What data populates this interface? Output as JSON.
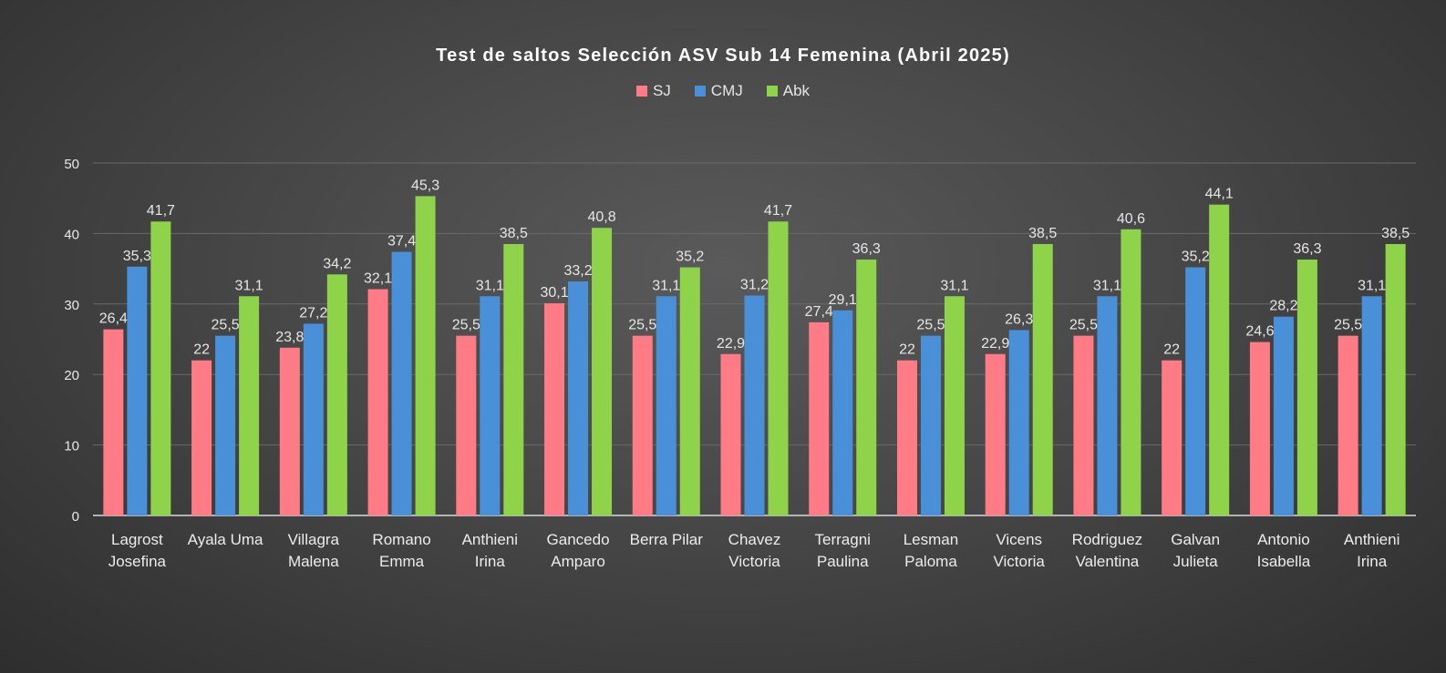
{
  "colors": {
    "SJ": "#ff7b85",
    "CMJ": "#4a90d9",
    "Abk": "#8ed34a"
  },
  "chart_data": {
    "type": "bar",
    "title": "Test de saltos Selección ASV Sub 14 Femenina (Abril 2025)",
    "categories": [
      [
        "Lagrost",
        "Josefina"
      ],
      [
        "Ayala Uma"
      ],
      [
        "Villagra",
        "Malena"
      ],
      [
        "Romano",
        "Emma"
      ],
      [
        "Anthieni",
        "Irina"
      ],
      [
        "Gancedo",
        "Amparo"
      ],
      [
        "Berra Pilar"
      ],
      [
        "Chavez",
        "Victoria"
      ],
      [
        "Terragni",
        "Paulina"
      ],
      [
        "Lesman",
        "Paloma"
      ],
      [
        "Vicens",
        "Victoria"
      ],
      [
        "Rodriguez",
        "Valentina"
      ],
      [
        "Galvan",
        "Julieta"
      ],
      [
        "Antonio",
        "Isabella"
      ],
      [
        "Anthieni",
        "Irina"
      ]
    ],
    "series": [
      {
        "name": "SJ",
        "values": [
          26.4,
          22,
          23.8,
          32.1,
          25.5,
          30.1,
          25.5,
          22.9,
          27.4,
          22,
          22.9,
          25.5,
          22,
          24.6,
          25.5
        ]
      },
      {
        "name": "CMJ",
        "values": [
          35.3,
          25.5,
          27.2,
          37.4,
          31.1,
          33.2,
          31.1,
          31.2,
          29.1,
          25.5,
          26.3,
          31.1,
          35.2,
          28.2,
          31.1
        ]
      },
      {
        "name": "Abk",
        "values": [
          41.7,
          31.1,
          34.2,
          45.3,
          38.5,
          40.8,
          35.2,
          41.7,
          36.3,
          31.1,
          38.5,
          40.6,
          44.1,
          36.3,
          38.5
        ]
      }
    ],
    "xlabel": "",
    "ylabel": "",
    "ylim": [
      0,
      50
    ],
    "yticks": [
      0,
      10,
      20,
      30,
      40,
      50
    ],
    "grid": true,
    "legend_position": "top",
    "decimal_separator": ","
  }
}
